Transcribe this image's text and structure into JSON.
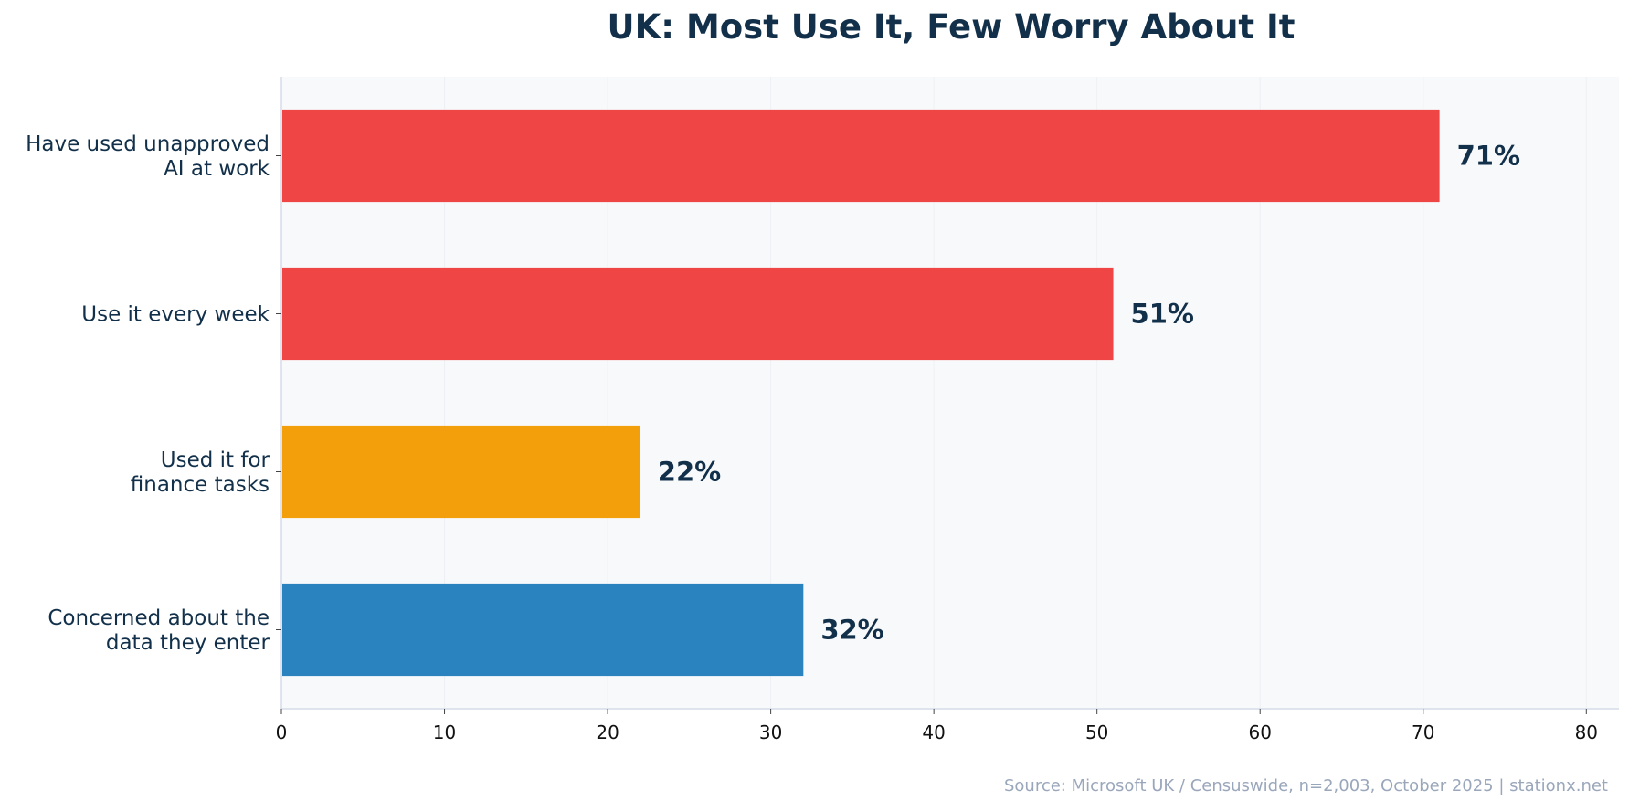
{
  "colors": {
    "background": "#ffffff",
    "plot_background": "#f8f9fb",
    "grid": "#eef0f3",
    "axis": "#d5dce8",
    "title": "#12304a",
    "text": "#12304a",
    "source": "#9aa7bb",
    "red": "#f04545",
    "orange": "#f39f0c",
    "blue": "#2a83be"
  },
  "chart_data": {
    "type": "bar",
    "orientation": "horizontal",
    "title": "UK: Most Use It, Few Worry About It",
    "xlabel": "",
    "ylabel": "",
    "xlim": [
      0,
      82
    ],
    "xticks": [
      0,
      10,
      20,
      30,
      40,
      50,
      60,
      70,
      80
    ],
    "grid": "vertical",
    "categories": [
      [
        "Have used unapproved",
        "AI at work"
      ],
      [
        "Use it every week"
      ],
      [
        "Used it for",
        "finance tasks"
      ],
      [
        "Concerned about the",
        "data they enter"
      ]
    ],
    "values": [
      71,
      51,
      22,
      32
    ],
    "value_labels": [
      "71%",
      "51%",
      "22%",
      "32%"
    ],
    "bar_colors": [
      "#f04545",
      "#f04545",
      "#f39f0c",
      "#2a83be"
    ]
  },
  "source": "Source: Microsoft UK / Censuswide, n=2,003, October 2025 | stationx.net"
}
